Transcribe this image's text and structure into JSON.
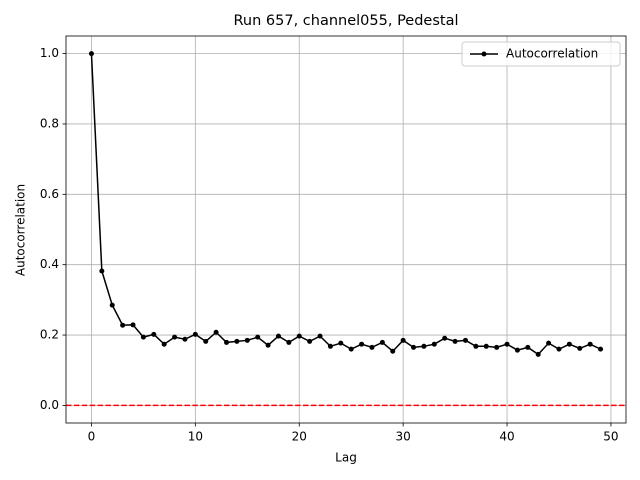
{
  "chart_data": {
    "type": "line",
    "title": "Run 657, channel055, Pedestal",
    "x_label": "Lag",
    "y_label": "Autocorrelation",
    "x": [
      0,
      1,
      2,
      3,
      4,
      5,
      6,
      7,
      8,
      9,
      10,
      11,
      12,
      13,
      14,
      15,
      16,
      17,
      18,
      19,
      20,
      21,
      22,
      23,
      24,
      25,
      26,
      27,
      28,
      29,
      30,
      31,
      32,
      33,
      34,
      35,
      36,
      37,
      38,
      39,
      40,
      41,
      42,
      43,
      44,
      45,
      46,
      47,
      48,
      49
    ],
    "series": [
      {
        "name": "Autocorrelation",
        "color": "#000000",
        "values": [
          1.0,
          0.382,
          0.285,
          0.228,
          0.229,
          0.194,
          0.202,
          0.174,
          0.194,
          0.188,
          0.202,
          0.182,
          0.208,
          0.179,
          0.182,
          0.185,
          0.194,
          0.171,
          0.197,
          0.179,
          0.197,
          0.182,
          0.197,
          0.168,
          0.177,
          0.16,
          0.174,
          0.165,
          0.179,
          0.154,
          0.185,
          0.165,
          0.168,
          0.174,
          0.191,
          0.182,
          0.185,
          0.168,
          0.168,
          0.165,
          0.174,
          0.157,
          0.165,
          0.145,
          0.177,
          0.16,
          0.174,
          0.162,
          0.174,
          0.16
        ]
      }
    ],
    "reference_line": {
      "value": 0,
      "color": "#ff0000"
    },
    "xlim": [
      -2.45,
      51.45
    ],
    "xticks": [
      0,
      10,
      20,
      30,
      40,
      50
    ],
    "ylim": [
      -0.05,
      1.05
    ],
    "yticks": [
      {
        "value": 0,
        "label": "0.0"
      },
      {
        "value": 0.2,
        "label": "0.2"
      },
      {
        "value": 0.4,
        "label": "0.4"
      },
      {
        "value": 0.6,
        "label": "0.6"
      },
      {
        "value": 0.8,
        "label": "0.8"
      },
      {
        "value": 1,
        "label": "1.0"
      }
    ],
    "grid": true,
    "legend": "upper right"
  }
}
